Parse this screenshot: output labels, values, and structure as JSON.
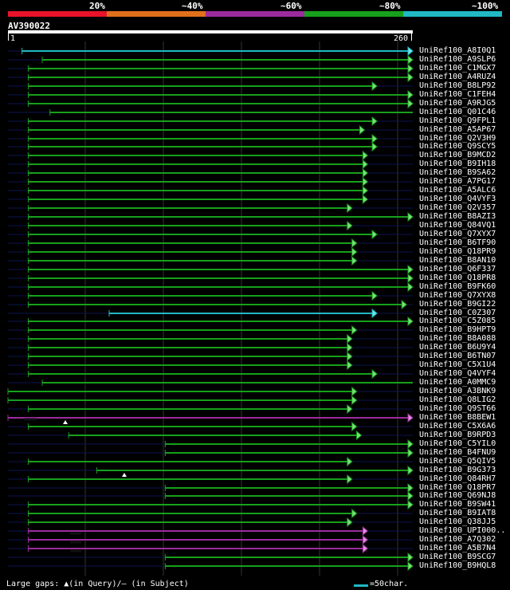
{
  "legend": [
    {
      "label": "20%",
      "color": "#e8132a"
    },
    {
      "label": "~40%",
      "color": "#e0701c"
    },
    {
      "label": "~60%",
      "color": "#9c2c9d"
    },
    {
      "label": "~80%",
      "color": "#17a01b"
    },
    {
      "label": "~100%",
      "color": "#20b9c4"
    }
  ],
  "query": {
    "name": "AV390022",
    "start_label": "1",
    "end_label": "260",
    "length": 260
  },
  "footer": {
    "gaps_text": "Large gaps: ▲(in Query)/– (in Subject)",
    "scale_text": "=50char."
  },
  "hits": [
    {
      "name": "UniRef100_A8I0Q1",
      "start": 10,
      "end": 261,
      "color": "#20b9c4",
      "arrow": true
    },
    {
      "name": "UniRef100_A9SLP6",
      "start": 23,
      "end": 261,
      "color": "#17a01b",
      "arrow": true
    },
    {
      "name": "UniRef100_C1MGX7",
      "start": 14,
      "end": 261,
      "color": "#17a01b",
      "arrow": true
    },
    {
      "name": "UniRef100_A4RUZ4",
      "start": 14,
      "end": 261,
      "color": "#17a01b",
      "arrow": true
    },
    {
      "name": "UniRef100_B8LP92",
      "start": 14,
      "end": 238,
      "color": "#17a01b",
      "arrow": true
    },
    {
      "name": "UniRef100_C1FEH4",
      "start": 14,
      "end": 261,
      "color": "#17a01b",
      "arrow": true
    },
    {
      "name": "UniRef100_A9RJG5",
      "start": 14,
      "end": 261,
      "color": "#17a01b",
      "arrow": true
    },
    {
      "name": "UniRef100_Q01C46",
      "start": 28,
      "end": 261,
      "color": "#17a01b",
      "arrow": false
    },
    {
      "name": "UniRef100_Q9FPL1",
      "start": 14,
      "end": 238,
      "color": "#17a01b",
      "arrow": true
    },
    {
      "name": "UniRef100_A5AP67",
      "start": 14,
      "end": 230,
      "color": "#17a01b",
      "arrow": true
    },
    {
      "name": "UniRef100_Q2V3H9",
      "start": 14,
      "end": 238,
      "color": "#17a01b",
      "arrow": true
    },
    {
      "name": "UniRef100_Q9SCY5",
      "start": 14,
      "end": 238,
      "color": "#17a01b",
      "arrow": true
    },
    {
      "name": "UniRef100_B9MCD2",
      "start": 14,
      "end": 232,
      "color": "#17a01b",
      "arrow": true
    },
    {
      "name": "UniRef100_B9IH18",
      "start": 14,
      "end": 232,
      "color": "#17a01b",
      "arrow": true
    },
    {
      "name": "UniRef100_B9SA62",
      "start": 14,
      "end": 232,
      "color": "#17a01b",
      "arrow": true
    },
    {
      "name": "UniRef100_A7PG17",
      "start": 14,
      "end": 232,
      "color": "#17a01b",
      "arrow": true
    },
    {
      "name": "UniRef100_A5ALC6",
      "start": 14,
      "end": 232,
      "color": "#17a01b",
      "arrow": true
    },
    {
      "name": "UniRef100_Q4VYF3",
      "start": 14,
      "end": 232,
      "color": "#17a01b",
      "arrow": true
    },
    {
      "name": "UniRef100_Q2V357",
      "start": 14,
      "end": 222,
      "color": "#17a01b",
      "arrow": true
    },
    {
      "name": "UniRef100_B8AZI3",
      "start": 14,
      "end": 261,
      "color": "#17a01b",
      "arrow": true
    },
    {
      "name": "UniRef100_Q84VQ1",
      "start": 14,
      "end": 222,
      "color": "#17a01b",
      "arrow": true
    },
    {
      "name": "UniRef100_Q7XYX7",
      "start": 14,
      "end": 238,
      "color": "#17a01b",
      "arrow": true
    },
    {
      "name": "UniRef100_B6TF90",
      "start": 14,
      "end": 225,
      "color": "#17a01b",
      "arrow": true
    },
    {
      "name": "UniRef100_Q18PR9",
      "start": 14,
      "end": 225,
      "color": "#17a01b",
      "arrow": true
    },
    {
      "name": "UniRef100_B8AN10",
      "start": 14,
      "end": 225,
      "color": "#17a01b",
      "arrow": true
    },
    {
      "name": "UniRef100_Q6F337",
      "start": 14,
      "end": 261,
      "color": "#17a01b",
      "arrow": true
    },
    {
      "name": "UniRef100_Q18PR8",
      "start": 14,
      "end": 261,
      "color": "#17a01b",
      "arrow": true
    },
    {
      "name": "UniRef100_B9FK60",
      "start": 14,
      "end": 261,
      "color": "#17a01b",
      "arrow": true
    },
    {
      "name": "UniRef100_Q7XYX8",
      "start": 14,
      "end": 238,
      "color": "#17a01b",
      "arrow": true
    },
    {
      "name": "UniRef100_B9GI22",
      "start": 14,
      "end": 257,
      "color": "#17a01b",
      "arrow": true
    },
    {
      "name": "UniRef100_C0Z307",
      "start": 66,
      "end": 238,
      "color": "#20b9c4",
      "arrow": true
    },
    {
      "name": "UniRef100_C5Z085",
      "start": 14,
      "end": 261,
      "color": "#17a01b",
      "arrow": true
    },
    {
      "name": "UniRef100_B9HPT9",
      "start": 14,
      "end": 225,
      "color": "#17a01b",
      "arrow": true
    },
    {
      "name": "UniRef100_B8A088",
      "start": 14,
      "end": 222,
      "color": "#17a01b",
      "arrow": true
    },
    {
      "name": "UniRef100_B6U9Y4",
      "start": 14,
      "end": 222,
      "color": "#17a01b",
      "arrow": true
    },
    {
      "name": "UniRef100_B6TN07",
      "start": 14,
      "end": 222,
      "color": "#17a01b",
      "arrow": true
    },
    {
      "name": "UniRef100_C5X1U4",
      "start": 14,
      "end": 222,
      "color": "#17a01b",
      "arrow": true
    },
    {
      "name": "UniRef100_Q4VYF4",
      "start": 14,
      "end": 238,
      "color": "#17a01b",
      "arrow": true
    },
    {
      "name": "UniRef100_A0MMC9",
      "start": 23,
      "end": 261,
      "color": "#17a01b",
      "arrow": false
    },
    {
      "name": "UniRef100_A3BNK9",
      "start": 1,
      "end": 225,
      "color": "#17a01b",
      "arrow": true
    },
    {
      "name": "UniRef100_Q8LIG2",
      "start": 1,
      "end": 225,
      "color": "#17a01b",
      "arrow": true
    },
    {
      "name": "UniRef100_Q9ST66",
      "start": 14,
      "end": 222,
      "color": "#17a01b",
      "arrow": true
    },
    {
      "name": "UniRef100_B8BEW1",
      "start": 1,
      "end": 261,
      "color": "#9c2c9d",
      "arrow": true
    },
    {
      "name": "UniRef100_C5X6A6",
      "start": 14,
      "end": 225,
      "color": "#17a01b",
      "arrow": true
    },
    {
      "name": "UniRef100_B9RPD3",
      "start": 40,
      "end": 228,
      "color": "#17a01b",
      "arrow": true
    },
    {
      "name": "UniRef100_C5YIL0",
      "start": 102,
      "end": 261,
      "color": "#17a01b",
      "arrow": true
    },
    {
      "name": "UniRef100_B4FNU9",
      "start": 102,
      "end": 261,
      "color": "#17a01b",
      "arrow": true
    },
    {
      "name": "UniRef100_Q5QIV5",
      "start": 14,
      "end": 222,
      "color": "#17a01b",
      "arrow": true
    },
    {
      "name": "UniRef100_B9G373",
      "start": 58,
      "end": 261,
      "color": "#17a01b",
      "arrow": true
    },
    {
      "name": "UniRef100_Q84RH7",
      "start": 14,
      "end": 222,
      "color": "#17a01b",
      "arrow": true
    },
    {
      "name": "UniRef100_Q18PR7",
      "start": 102,
      "end": 261,
      "color": "#17a01b",
      "arrow": true
    },
    {
      "name": "UniRef100_Q69NJ8",
      "start": 102,
      "end": 261,
      "color": "#17a01b",
      "arrow": true
    },
    {
      "name": "UniRef100_B9SW41",
      "start": 14,
      "end": 261,
      "color": "#17a01b",
      "arrow": true
    },
    {
      "name": "UniRef100_B9IAT8",
      "start": 14,
      "end": 225,
      "color": "#17a01b",
      "arrow": true
    },
    {
      "name": "UniRef100_Q38JJ5",
      "start": 14,
      "end": 222,
      "color": "#17a01b",
      "arrow": true
    },
    {
      "name": "UniRef100_UPI000..",
      "start": 14,
      "end": 232,
      "color": "#9c2c9d",
      "arrow": true
    },
    {
      "name": "UniRef100_A7Q302",
      "start": 14,
      "end": 232,
      "color": "#9c2c9d",
      "arrow": true
    },
    {
      "name": "UniRef100_A5B7N4",
      "start": 14,
      "end": 232,
      "color": "#9c2c9d",
      "arrow": true
    },
    {
      "name": "UniRef100_B9SCG7",
      "start": 102,
      "end": 261,
      "color": "#17a01b",
      "arrow": true
    },
    {
      "name": "UniRef100_B9HQL8",
      "start": 102,
      "end": 261,
      "color": "#17a01b",
      "arrow": true
    }
  ]
}
